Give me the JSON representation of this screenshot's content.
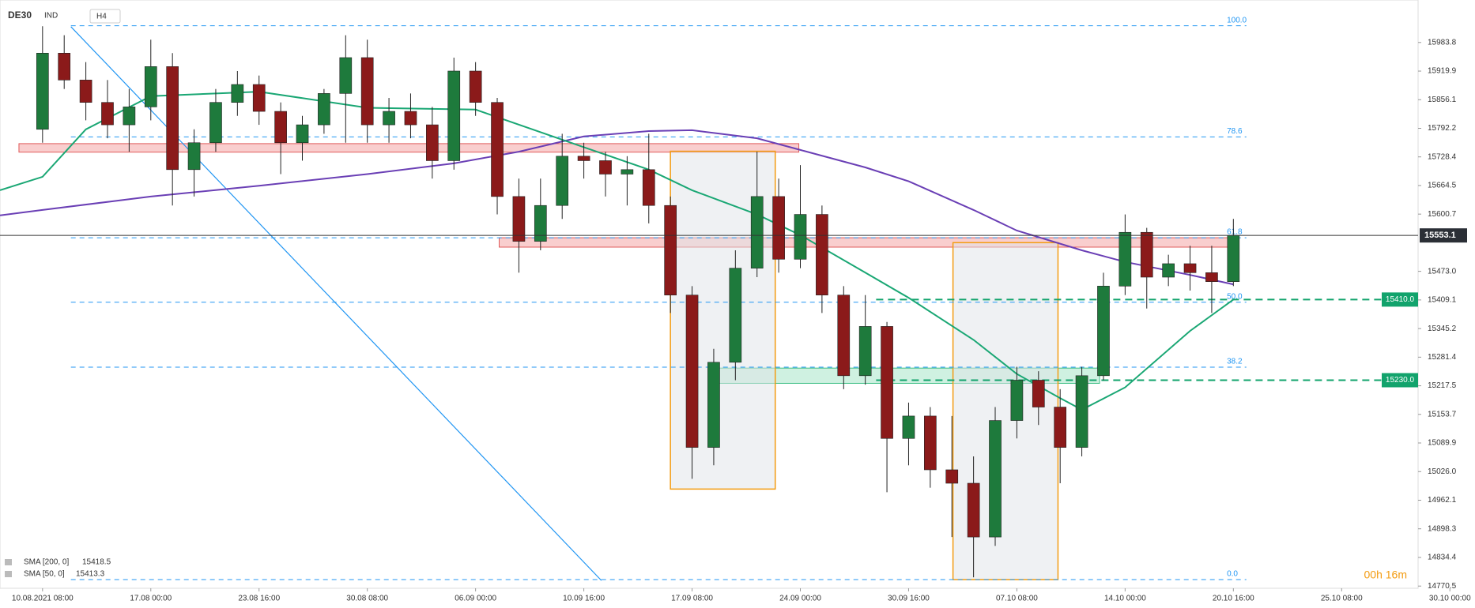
{
  "chart_data": {
    "type": "candlestick",
    "symbol": "DE30",
    "symbol_type": "IND",
    "timeframe": "H4",
    "x": [
      0,
      1,
      2,
      3,
      4,
      5,
      6,
      7,
      8,
      9,
      10,
      11,
      12,
      13,
      14,
      15,
      16,
      17,
      18,
      19,
      20,
      21,
      22,
      23,
      24,
      25,
      26,
      27,
      28,
      29,
      30,
      31,
      32,
      33,
      34,
      35,
      36,
      37,
      38,
      39,
      40,
      41,
      42,
      43,
      44,
      45,
      46,
      47,
      48,
      49,
      50,
      51,
      52,
      53,
      54,
      55
    ],
    "candles": [
      [
        15790,
        16020,
        15760,
        15960
      ],
      [
        15960,
        16000,
        15880,
        15900
      ],
      [
        15900,
        15940,
        15810,
        15850
      ],
      [
        15850,
        15900,
        15770,
        15800
      ],
      [
        15800,
        15880,
        15740,
        15840
      ],
      [
        15840,
        15990,
        15810,
        15930
      ],
      [
        15930,
        15960,
        15620,
        15700
      ],
      [
        15700,
        15790,
        15640,
        15760
      ],
      [
        15760,
        15880,
        15740,
        15850
      ],
      [
        15850,
        15920,
        15820,
        15890
      ],
      [
        15890,
        15910,
        15800,
        15830
      ],
      [
        15830,
        15850,
        15690,
        15760
      ],
      [
        15760,
        15820,
        15720,
        15800
      ],
      [
        15800,
        15880,
        15780,
        15870
      ],
      [
        15870,
        16000,
        15760,
        15950
      ],
      [
        15950,
        15990,
        15760,
        15800
      ],
      [
        15800,
        15860,
        15760,
        15830
      ],
      [
        15830,
        15870,
        15770,
        15800
      ],
      [
        15800,
        15840,
        15680,
        15720
      ],
      [
        15720,
        15950,
        15700,
        15920
      ],
      [
        15920,
        15940,
        15820,
        15850
      ],
      [
        15850,
        15860,
        15600,
        15640
      ],
      [
        15640,
        15680,
        15470,
        15540
      ],
      [
        15540,
        15680,
        15520,
        15620
      ],
      [
        15620,
        15780,
        15590,
        15730
      ],
      [
        15730,
        15760,
        15680,
        15720
      ],
      [
        15720,
        15740,
        15640,
        15690
      ],
      [
        15690,
        15730,
        15620,
        15700
      ],
      [
        15700,
        15780,
        15580,
        15620
      ],
      [
        15620,
        15640,
        15380,
        15420
      ],
      [
        15420,
        15440,
        15010,
        15080
      ],
      [
        15080,
        15300,
        15040,
        15270
      ],
      [
        15270,
        15520,
        15230,
        15480
      ],
      [
        15480,
        15740,
        15460,
        15640
      ],
      [
        15640,
        15680,
        15470,
        15500
      ],
      [
        15500,
        15710,
        15480,
        15600
      ],
      [
        15600,
        15620,
        15380,
        15420
      ],
      [
        15420,
        15440,
        15210,
        15240
      ],
      [
        15240,
        15420,
        15220,
        15350
      ],
      [
        15350,
        15360,
        14980,
        15100
      ],
      [
        15100,
        15180,
        15040,
        15150
      ],
      [
        15150,
        15170,
        14990,
        15030
      ],
      [
        15030,
        15150,
        14880,
        15000
      ],
      [
        15000,
        15060,
        14790,
        14880
      ],
      [
        14880,
        15170,
        14860,
        15140
      ],
      [
        15140,
        15260,
        15100,
        15230
      ],
      [
        15230,
        15250,
        15130,
        15170
      ],
      [
        15170,
        15210,
        15000,
        15080
      ],
      [
        15080,
        15260,
        15060,
        15240
      ],
      [
        15240,
        15470,
        15230,
        15440
      ],
      [
        15440,
        15600,
        15420,
        15560
      ],
      [
        15560,
        15570,
        15390,
        15460
      ],
      [
        15460,
        15510,
        15440,
        15490
      ],
      [
        15490,
        15530,
        15430,
        15470
      ],
      [
        15470,
        15530,
        15380,
        15450
      ],
      [
        15450,
        15590,
        15440,
        15553.1
      ]
    ],
    "up_color": "#1e7a3c",
    "down_color": "#8b1a1a",
    "xlim": [
      -1.965,
      66.16
    ],
    "ylim": [
      14751.5,
      16078.6
    ],
    "xticks": [
      {
        "value": 0,
        "label": "10.08.2021  08:00"
      },
      {
        "value": 5,
        "label": "17.08  00:00"
      },
      {
        "value": 10,
        "label": "23.08  16:00"
      },
      {
        "value": 15,
        "label": "30.08  08:00"
      },
      {
        "value": 20,
        "label": "06.09  00:00"
      },
      {
        "value": 25,
        "label": "10.09  16:00"
      },
      {
        "value": 30,
        "label": "17.09  08:00"
      },
      {
        "value": 35,
        "label": "24.09  00:00"
      },
      {
        "value": 40,
        "label": "30.09  16:00"
      },
      {
        "value": 45,
        "label": "07.10  08:00"
      },
      {
        "value": 50,
        "label": "14.10  00:00"
      },
      {
        "value": 55,
        "label": "20.10  16:00"
      },
      {
        "value": 60,
        "label": "25.10  08:00"
      },
      {
        "value": 65,
        "label": "30.10  00:00"
      }
    ],
    "yticks": [
      15983.8,
      15919.9,
      15856.1,
      15792.2,
      15728.4,
      15664.5,
      15600.7,
      {
        "value": 15473.0,
        "label": "15473.0"
      },
      15409.1,
      15345.2,
      15281.4,
      15217.5,
      15153.7,
      15089.9,
      {
        "value": 15026.0,
        "label": "15026.0"
      },
      14962.1,
      14898.3,
      14834.4,
      14770.5
    ],
    "last_price": 15553.1,
    "indicators": [
      {
        "name": "SMA [200, 0]",
        "legend_value": 15418.5,
        "color": "#6a3fb5",
        "x": [
          -1.965,
          0,
          5,
          10,
          15,
          19,
          22,
          25,
          28,
          30,
          33,
          35,
          38,
          40,
          43,
          45,
          48,
          50,
          53,
          55
        ],
        "values": [
          15598,
          15610,
          15640,
          15664,
          15690,
          15714,
          15740,
          15774,
          15786,
          15788,
          15770,
          15744,
          15705,
          15674,
          15610,
          15564,
          15520,
          15494,
          15465,
          15444
        ]
      },
      {
        "name": "SMA [50, 0]",
        "legend_value": 15413.3,
        "color": "#1aa774",
        "x": [
          -1.965,
          0,
          2,
          5,
          8,
          10,
          15,
          20,
          25,
          28,
          30,
          33,
          35,
          38,
          40,
          43,
          45,
          47,
          48,
          50,
          53,
          55
        ],
        "values": [
          15654,
          15684,
          15790,
          15864,
          15870,
          15874,
          15838,
          15834,
          15750,
          15700,
          15654,
          15600,
          15554,
          15470,
          15414,
          15320,
          15244,
          15190,
          15164,
          15214,
          15340,
          15410
        ]
      }
    ],
    "fib": [
      {
        "value": 16021,
        "label": "100.0"
      },
      {
        "value": 15773,
        "label": "78.6"
      },
      {
        "value": 15548,
        "label": "61.8"
      },
      {
        "value": 15404,
        "label": "50.0"
      },
      {
        "value": 15259,
        "label": "38.2"
      },
      {
        "value": 14785,
        "label": "0.0"
      }
    ],
    "fib_color": "#2196f3",
    "levels": [
      {
        "value": 15410,
        "label": "15410.0"
      },
      {
        "value": 15230,
        "label": "15230.0"
      }
    ],
    "level_color": "#12a36c",
    "zones": [
      {
        "x": [
          -1.09,
          34.93
        ],
        "y": [
          15739,
          15758
        ],
        "color": "#f4a6a6"
      },
      {
        "x": [
          21.09,
          54.8
        ],
        "y": [
          15527,
          15548
        ],
        "color": "#f4a6a6"
      },
      {
        "x": [
          30.79,
          48.82
        ],
        "y": [
          15223,
          15257
        ],
        "color": "#a8e6c8"
      }
    ],
    "boxes": [
      {
        "x": [
          29.0,
          33.84
        ],
        "y": [
          14987,
          15741
        ]
      },
      {
        "x": [
          42.05,
          46.9
        ],
        "y": [
          14785,
          15537
        ]
      }
    ],
    "trendline": {
      "x": [
        1.31,
        25.81
      ],
      "y": [
        16019,
        14783
      ]
    },
    "countdown": "00h 16m"
  }
}
